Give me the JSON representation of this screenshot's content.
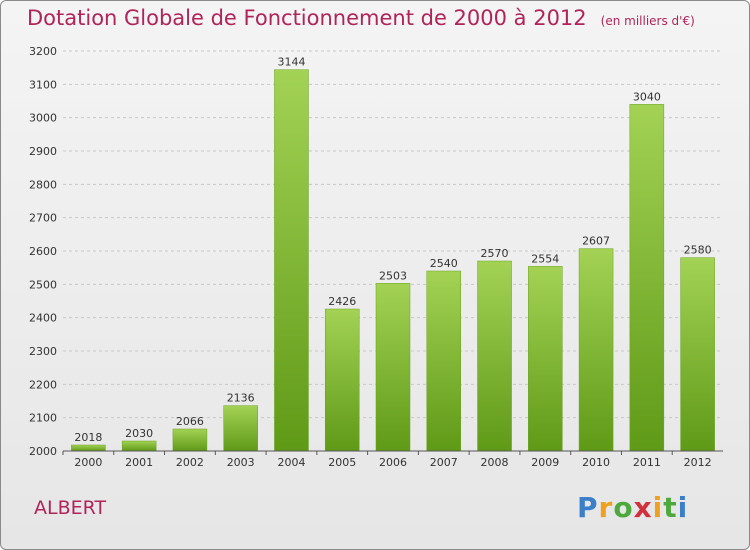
{
  "header": {
    "title": "Dotation Globale de Fonctionnement de 2000 à 2012",
    "unit": "(en milliers d'€)"
  },
  "footer": {
    "commune": "ALBERT",
    "logo": "Proxiti"
  },
  "colors": {
    "title": "#b0245a",
    "bar_top": "#a3d254",
    "bar_bottom": "#5f9a17",
    "logo_blue": "#3a7fc8",
    "logo_orange": "#f0a020",
    "logo_green": "#4caa3c",
    "logo_red": "#d2303c"
  },
  "chart_data": {
    "type": "bar",
    "categories": [
      "2000",
      "2001",
      "2002",
      "2003",
      "2004",
      "2005",
      "2006",
      "2007",
      "2008",
      "2009",
      "2010",
      "2011",
      "2012"
    ],
    "values": [
      2018,
      2030,
      2066,
      2136,
      3144,
      2426,
      2503,
      2540,
      2570,
      2554,
      2607,
      3040,
      2580
    ],
    "ylim": [
      2000,
      3200
    ],
    "yticks": [
      2000,
      2100,
      2200,
      2300,
      2400,
      2500,
      2600,
      2700,
      2800,
      2900,
      3000,
      3100,
      3200
    ],
    "grid": true,
    "xlabel": "",
    "ylabel": ""
  }
}
